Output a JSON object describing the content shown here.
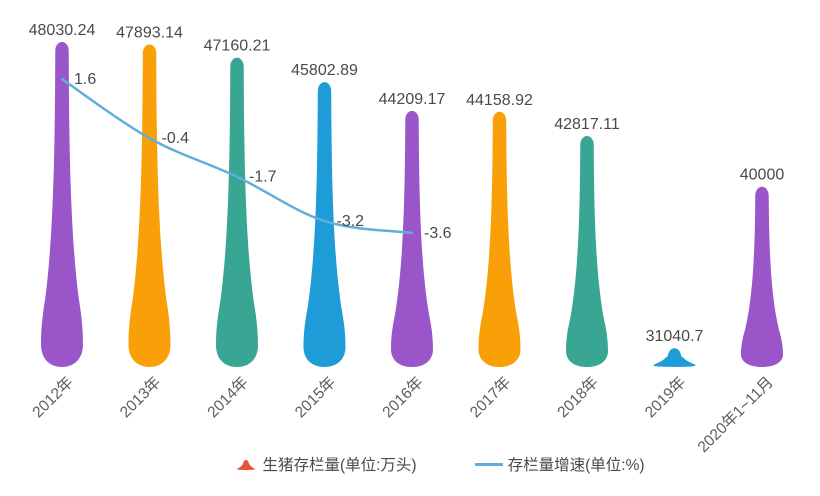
{
  "chart_data": {
    "type": "bar",
    "subtype": "pictorial-teardrop-bars-with-line-overlay",
    "title": "",
    "xlabel": "",
    "ylabel": "",
    "grid": false,
    "background": "#FFFFFF",
    "categories": [
      "2012年",
      "2013年",
      "2014年",
      "2015年",
      "2016年",
      "2017年",
      "2018年",
      "2019年",
      "2020年1~11月"
    ],
    "series": [
      {
        "name": "生猪存栏量(单位:万头)",
        "type": "pictorialBar",
        "values": [
          48030.24,
          47893.14,
          47160.21,
          45802.89,
          44209.17,
          44158.92,
          42817.11,
          31040.7,
          40000
        ],
        "colors": [
          "#9A55C8",
          "#F9A008",
          "#39A694",
          "#1E9CD7",
          "#9A55C8",
          "#F9A008",
          "#39A694",
          "#1E9CD7",
          "#9A55C8"
        ]
      },
      {
        "name": "存栏量增速(单位:%)",
        "type": "line",
        "smooth": true,
        "values": [
          1.6,
          -0.4,
          -1.7,
          -3.2,
          -3.6,
          null,
          null,
          null,
          null
        ],
        "color": "#62AEDB"
      }
    ],
    "bar_axis": {
      "min": 30000,
      "max": 48030.24
    },
    "line_axis": {
      "min": -4,
      "max": 2
    },
    "value_label_color": "#4A4A4A",
    "axis_label_color": "#5C5C5C",
    "legend_position": "bottom",
    "legend": [
      {
        "label": "生猪存栏量(单位:万头)",
        "symbol": "drop",
        "color": "#E2523C"
      },
      {
        "label": "存栏量增速(单位:%)",
        "symbol": "line",
        "color": "#62AEDB"
      }
    ]
  }
}
